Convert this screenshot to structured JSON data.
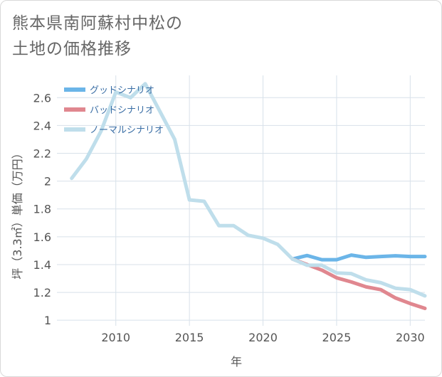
{
  "title_lines": [
    "熊本県南阿蘇村中松の",
    "土地の価格推移"
  ],
  "colors": {
    "good": "#6bb5e8",
    "bad": "#e0878f",
    "normal": "#bfdeeb",
    "grid": "#d8e1ea",
    "plot_bg": "#ffffff"
  },
  "chart_data": {
    "type": "line",
    "xlabel": "年",
    "ylabel": "坪（3.3㎡）単価（万円）",
    "xlim": [
      2006,
      2031
    ],
    "ylim": [
      0.96,
      2.76
    ],
    "x_ticks": [
      2010,
      2015,
      2020,
      2025,
      2030
    ],
    "y_ticks": [
      1,
      1.2,
      1.4,
      1.6,
      1.8,
      2,
      2.2,
      2.4,
      2.6
    ],
    "grid": true,
    "legend_position": "top-left",
    "series": [
      {
        "name": "グッドシナリオ",
        "key": "good",
        "x": [
          2022,
          2023,
          2024,
          2025,
          2026,
          2027,
          2028,
          2029,
          2030,
          2031
        ],
        "y": [
          1.44,
          1.465,
          1.435,
          1.435,
          1.468,
          1.452,
          1.458,
          1.463,
          1.458,
          1.458
        ]
      },
      {
        "name": "バッドシナリオ",
        "key": "bad",
        "x": [
          2022,
          2023,
          2024,
          2025,
          2026,
          2027,
          2028,
          2029,
          2030,
          2031
        ],
        "y": [
          1.44,
          1.4,
          1.36,
          1.305,
          1.275,
          1.24,
          1.22,
          1.16,
          1.12,
          1.085
        ]
      },
      {
        "name": "ノーマルシナリオ",
        "key": "normal",
        "x": [
          2007,
          2008,
          2009,
          2010,
          2011,
          2012,
          2013,
          2014,
          2015,
          2016,
          2017,
          2018,
          2019,
          2020,
          2021,
          2022,
          2023,
          2024,
          2025,
          2026,
          2027,
          2028,
          2029,
          2030,
          2031
        ],
        "y": [
          2.02,
          2.16,
          2.36,
          2.64,
          2.6,
          2.7,
          2.5,
          2.3,
          1.865,
          1.855,
          1.68,
          1.68,
          1.61,
          1.59,
          1.545,
          1.44,
          1.395,
          1.395,
          1.34,
          1.335,
          1.29,
          1.27,
          1.23,
          1.22,
          1.175
        ]
      }
    ]
  }
}
